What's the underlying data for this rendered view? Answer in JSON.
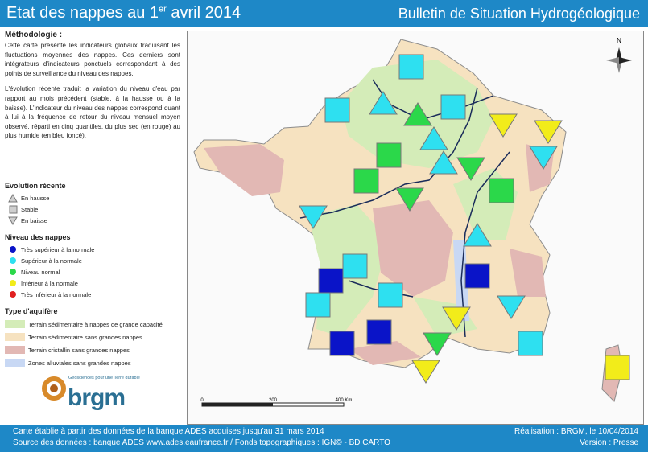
{
  "header": {
    "title_prefix": "Etat des nappes au 1",
    "title_sup": "er",
    "title_suffix": " avril 2014",
    "bulletin": "Bulletin de Situation Hydrogéologique"
  },
  "methodology": {
    "heading": "Méthodologie :",
    "paragraph1": "Cette carte présente les indicateurs globaux traduisant les fluctuations moyennes des nappes. Ces derniers sont intégrateurs d'indicateurs ponctuels correspondant à des points de surveillance du niveau des nappes.",
    "paragraph2": "L'évolution récente traduit la variation du niveau d'eau par rapport au mois précédent (stable, à la hausse ou à la baisse). L'indicateur du niveau des nappes correspond quant à lui à la fréquence de retour du niveau mensuel moyen observé, réparti en cinq quantiles, du plus sec (en rouge) au plus humide (en bleu foncé)."
  },
  "legend": {
    "evolution": {
      "heading": "Evolution récente",
      "items": [
        {
          "label": "En hausse",
          "shape": "triangle-up"
        },
        {
          "label": "Stable",
          "shape": "square"
        },
        {
          "label": "En baisse",
          "shape": "triangle-down"
        }
      ]
    },
    "levels": {
      "heading": "Niveau des nappes",
      "items": [
        {
          "label": "Très supérieur à la normale",
          "color": "#0a14c8"
        },
        {
          "label": "Supérieur à la normale",
          "color": "#2ee0f0"
        },
        {
          "label": "Niveau normal",
          "color": "#2bd84a"
        },
        {
          "label": "Inférieur à la normale",
          "color": "#f2ec1a"
        },
        {
          "label": "Très inférieur à la normale",
          "color": "#e02020"
        }
      ]
    },
    "aquifer": {
      "heading": "Type d'aquifère",
      "items": [
        {
          "label": "Terrain sédimentaire à nappes de grande capacité",
          "color": "#d4ecb8"
        },
        {
          "label": "Terrain sédimentaire sans grandes nappes",
          "color": "#f6e2c0"
        },
        {
          "label": "Terrain cristallin sans grandes nappes",
          "color": "#e2b8b4"
        },
        {
          "label": "Zones alluviales sans grandes nappes",
          "color": "#c8d8f4"
        }
      ]
    }
  },
  "logo": {
    "name": "brgm",
    "tagline": "Géosciences pour une Terre durable"
  },
  "map": {
    "north": "N",
    "scale_labels": [
      "0",
      "200",
      "400 Km"
    ],
    "indicators": [
      {
        "id": "nord",
        "shape": "square",
        "level": "high"
      },
      {
        "id": "picardie-n",
        "shape": "up",
        "level": "high"
      },
      {
        "id": "basse-normandie",
        "shape": "square",
        "level": "high"
      },
      {
        "id": "picardie",
        "shape": "up",
        "level": "normal"
      },
      {
        "id": "champagne",
        "shape": "square",
        "level": "high"
      },
      {
        "id": "lorraine",
        "shape": "down",
        "level": "low"
      },
      {
        "id": "alsace",
        "shape": "down",
        "level": "low"
      },
      {
        "id": "ile-de-france",
        "shape": "up",
        "level": "high"
      },
      {
        "id": "beauce",
        "shape": "square",
        "level": "normal"
      },
      {
        "id": "champagne-s",
        "shape": "up",
        "level": "high"
      },
      {
        "id": "bourgogne-n",
        "shape": "down",
        "level": "normal"
      },
      {
        "id": "vosges",
        "shape": "down",
        "level": "high"
      },
      {
        "id": "centre-ouest",
        "shape": "square",
        "level": "normal"
      },
      {
        "id": "centre",
        "shape": "down",
        "level": "normal"
      },
      {
        "id": "franche-comte",
        "shape": "square",
        "level": "normal"
      },
      {
        "id": "bretagne",
        "shape": "down",
        "level": "high"
      },
      {
        "id": "rhone",
        "shape": "up",
        "level": "high"
      },
      {
        "id": "poitou",
        "shape": "square",
        "level": "high"
      },
      {
        "id": "charente",
        "shape": "square",
        "level": "very-high"
      },
      {
        "id": "vendee",
        "shape": "square",
        "level": "high"
      },
      {
        "id": "limousin",
        "shape": "square",
        "level": "high"
      },
      {
        "id": "rhone-alpes",
        "shape": "square",
        "level": "very-high"
      },
      {
        "id": "drome",
        "shape": "down",
        "level": "high"
      },
      {
        "id": "causses",
        "shape": "down",
        "level": "low"
      },
      {
        "id": "aquitaine",
        "shape": "square",
        "level": "very-high"
      },
      {
        "id": "adour",
        "shape": "square",
        "level": "very-high"
      },
      {
        "id": "languedoc",
        "shape": "down",
        "level": "normal"
      },
      {
        "id": "provence",
        "shape": "square",
        "level": "high"
      },
      {
        "id": "roussillon",
        "shape": "down",
        "level": "low"
      },
      {
        "id": "corse",
        "shape": "square",
        "level": "low"
      }
    ]
  },
  "footer": {
    "line1_left": "Carte établie à partir des données de la banque ADES acquises jusqu'au 31 mars 2014",
    "line2_left": "Source des données : banque ADES www.ades.eaufrance.fr / Fonds topographiques : IGN© - BD CARTO",
    "line1_right": "Réalisation : BRGM, le 10/04/2014",
    "line2_right": "Version : Presse"
  }
}
